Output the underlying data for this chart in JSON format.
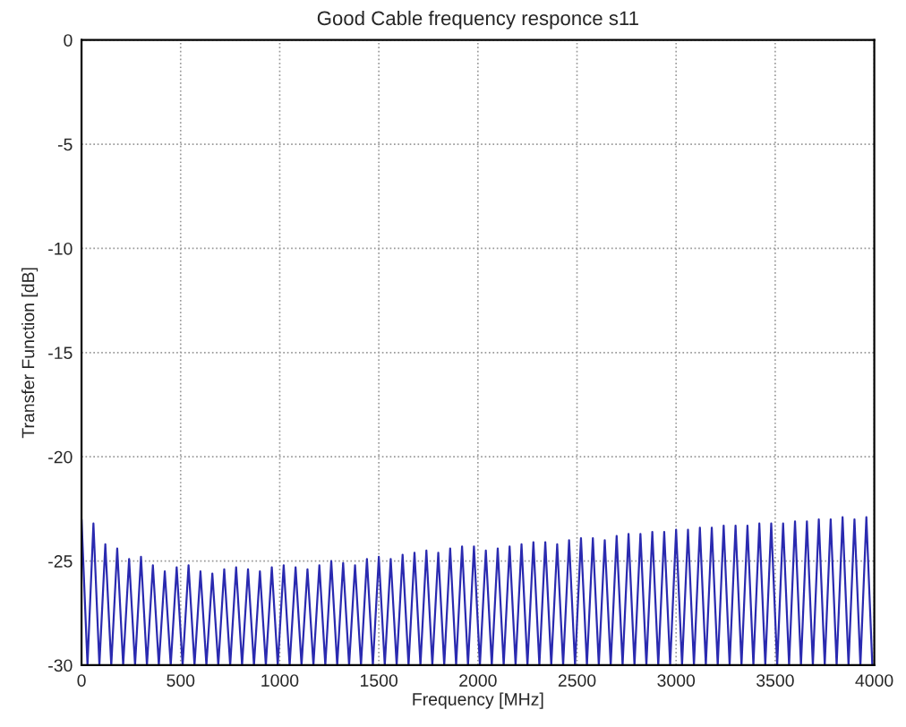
{
  "chart_data": {
    "type": "line",
    "title": "Good Cable frequency responce s11",
    "xlabel": "Frequency [MHz]",
    "ylabel": "Transfer Function [dB]",
    "x": [
      0,
      30,
      60,
      90,
      120,
      150,
      180,
      210,
      240,
      270,
      300,
      330,
      360,
      390,
      420,
      450,
      480,
      510,
      540,
      570,
      600,
      630,
      660,
      690,
      720,
      750,
      780,
      810,
      840,
      870,
      900,
      930,
      960,
      990,
      1020,
      1050,
      1080,
      1110,
      1140,
      1170,
      1200,
      1230,
      1260,
      1290,
      1320,
      1350,
      1380,
      1410,
      1440,
      1470,
      1500,
      1530,
      1560,
      1590,
      1620,
      1650,
      1680,
      1710,
      1740,
      1770,
      1800,
      1830,
      1860,
      1890,
      1920,
      1950,
      1980,
      2010,
      2040,
      2070,
      2100,
      2130,
      2160,
      2190,
      2220,
      2250,
      2280,
      2310,
      2340,
      2370,
      2400,
      2430,
      2460,
      2490,
      2520,
      2550,
      2580,
      2610,
      2640,
      2670,
      2700,
      2730,
      2760,
      2790,
      2820,
      2850,
      2880,
      2910,
      2940,
      2970,
      3000,
      3030,
      3060,
      3090,
      3120,
      3150,
      3180,
      3210,
      3240,
      3270,
      3300,
      3330,
      3360,
      3390,
      3420,
      3450,
      3480,
      3510,
      3540,
      3570,
      3600,
      3630,
      3660,
      3690,
      3720,
      3750,
      3780,
      3810,
      3840,
      3870,
      3900,
      3930,
      3960,
      3990
    ],
    "series": [
      {
        "color": "#2a2ab0",
        "values": [
          -23.0,
          -30,
          -23.2,
          -30,
          -24.2,
          -30,
          -24.4,
          -30,
          -24.9,
          -30,
          -24.8,
          -30,
          -25.2,
          -30,
          -25.5,
          -30,
          -25.3,
          -30,
          -25.2,
          -30,
          -25.5,
          -30,
          -25.6,
          -30,
          -25.4,
          -30,
          -25.3,
          -30,
          -25.4,
          -30,
          -25.5,
          -30,
          -25.3,
          -30,
          -25.2,
          -30,
          -25.3,
          -30,
          -25.4,
          -30,
          -25.2,
          -30,
          -25.0,
          -30,
          -25.1,
          -30,
          -25.2,
          -30,
          -24.9,
          -30,
          -24.8,
          -30,
          -24.9,
          -30,
          -24.7,
          -30,
          -24.6,
          -30,
          -24.5,
          -30,
          -24.6,
          -30,
          -24.4,
          -30,
          -24.3,
          -30,
          -24.3,
          -30,
          -24.5,
          -30,
          -24.4,
          -30,
          -24.3,
          -30,
          -24.2,
          -30,
          -24.1,
          -30,
          -24.1,
          -30,
          -24.2,
          -30,
          -24.0,
          -30,
          -23.9,
          -30,
          -23.9,
          -30,
          -24.0,
          -30,
          -23.8,
          -30,
          -23.7,
          -30,
          -23.7,
          -30,
          -23.6,
          -30,
          -23.6,
          -30,
          -23.5,
          -30,
          -23.5,
          -30,
          -23.4,
          -30,
          -23.4,
          -30,
          -23.3,
          -30,
          -23.3,
          -30,
          -23.3,
          -30,
          -23.2,
          -30,
          -23.2,
          -30,
          -23.2,
          -30,
          -23.1,
          -30,
          -23.1,
          -30,
          -23.0,
          -30,
          -23.0,
          -30,
          -22.9,
          -30,
          -23.0,
          -30,
          -22.9,
          -30
        ]
      }
    ],
    "xlim": [
      0,
      4000
    ],
    "xticks": [
      0,
      500,
      1000,
      1500,
      2000,
      2500,
      3000,
      3500,
      4000
    ],
    "ylim": [
      -30,
      0
    ],
    "yticks": [
      -30,
      -25,
      -20,
      -15,
      -10,
      -5,
      0
    ],
    "grid": true,
    "marker": "none",
    "line_style": "solid"
  }
}
